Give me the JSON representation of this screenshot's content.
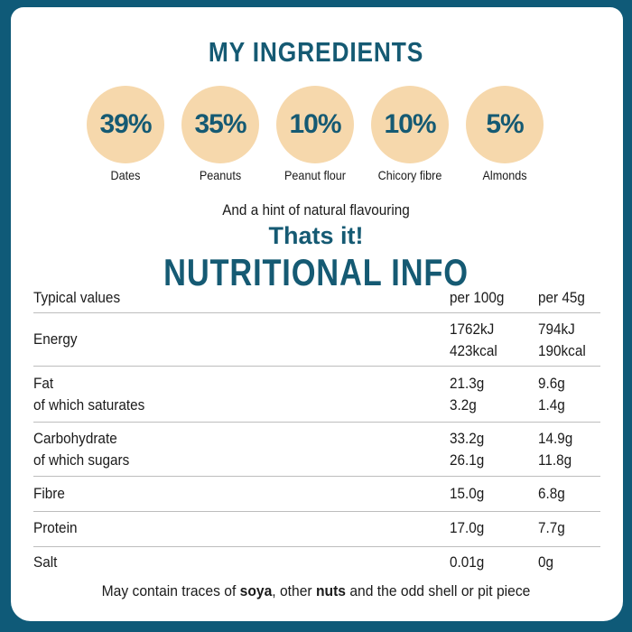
{
  "colors": {
    "background": "#0f5a78",
    "accent": "#155a73",
    "circle": "#f6d8ac"
  },
  "ingredients_title": "My ingredients",
  "ingredients": [
    {
      "percent": "39%",
      "name": "Dates"
    },
    {
      "percent": "35%",
      "name": "Peanuts"
    },
    {
      "percent": "10%",
      "name": "Peanut flour"
    },
    {
      "percent": "10%",
      "name": "Chicory fibre"
    },
    {
      "percent": "5%",
      "name": "Almonds"
    }
  ],
  "hint": "And a hint of natural flavouring",
  "thats_it": "Thats it!",
  "nutrition_title": "Nutritional info",
  "table": {
    "headers": [
      "Typical values",
      "per 100g",
      "per 45g"
    ],
    "rows": [
      {
        "label": [
          "Energy"
        ],
        "per100": [
          "1762kJ",
          "423kcal"
        ],
        "per45": [
          "794kJ",
          "190kcal"
        ]
      },
      {
        "label": [
          "Fat",
          "of which saturates"
        ],
        "per100": [
          "21.3g",
          "3.2g"
        ],
        "per45": [
          "9.6g",
          "1.4g"
        ]
      },
      {
        "label": [
          "Carbohydrate",
          "of which sugars"
        ],
        "per100": [
          "33.2g",
          "26.1g"
        ],
        "per45": [
          "14.9g",
          "11.8g"
        ]
      },
      {
        "label": [
          "Fibre"
        ],
        "per100": [
          "15.0g"
        ],
        "per45": [
          "6.8g"
        ]
      },
      {
        "label": [
          "Protein"
        ],
        "per100": [
          "17.0g"
        ],
        "per45": [
          "7.7g"
        ]
      },
      {
        "label": [
          "Salt"
        ],
        "per100": [
          "0.01g"
        ],
        "per45": [
          "0g"
        ]
      }
    ]
  },
  "footer": {
    "p1": "May contain traces of ",
    "b1": "soya",
    "p2": ", other ",
    "b2": "nuts",
    "p3": " and the odd shell or pit piece"
  }
}
